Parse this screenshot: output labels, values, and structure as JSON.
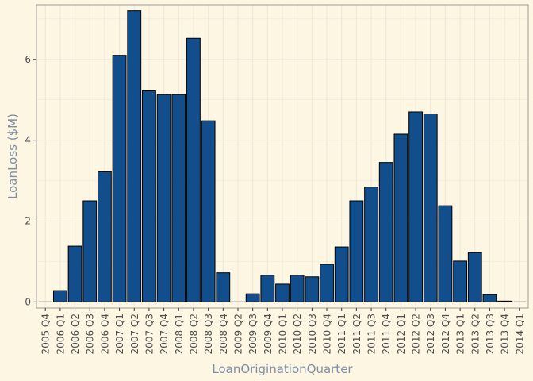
{
  "chart_data": {
    "type": "bar",
    "title": "",
    "xlabel": "LoanOriginationQuarter",
    "ylabel": "LoanLoss ($M)",
    "ylim": [
      -0.15,
      7.35
    ],
    "yticks": [
      0,
      2,
      4,
      6
    ],
    "grid": true,
    "legend": "none",
    "colors": {
      "background": "#fdf6e3",
      "panel": "#fdf6e3",
      "grid": "#efe8d6",
      "bar_fill": "#124e8c",
      "bar_outline": "#000000",
      "axis_text": "#4d4d4d",
      "axis_title": "#7f8ea3",
      "panel_border": "#9a9a9a"
    },
    "categories": [
      "2005 Q4",
      "2006 Q1",
      "2006 Q2",
      "2006 Q3",
      "2006 Q4",
      "2007 Q1",
      "2007 Q2",
      "2007 Q3",
      "2007 Q4",
      "2008 Q1",
      "2008 Q2",
      "2008 Q3",
      "2008 Q4",
      "2009 Q2",
      "2009 Q3",
      "2009 Q4",
      "2010 Q1",
      "2010 Q2",
      "2010 Q3",
      "2010 Q4",
      "2011 Q1",
      "2011 Q2",
      "2011 Q3",
      "2011 Q4",
      "2012 Q1",
      "2012 Q2",
      "2012 Q3",
      "2012 Q4",
      "2013 Q1",
      "2013 Q2",
      "2013 Q3",
      "2013 Q4",
      "2014 Q1"
    ],
    "values": [
      0.0,
      0.28,
      1.38,
      2.5,
      3.22,
      6.1,
      7.2,
      5.22,
      5.13,
      5.13,
      6.52,
      4.48,
      0.72,
      0.0,
      0.2,
      0.66,
      0.44,
      0.66,
      0.62,
      0.93,
      1.36,
      2.5,
      2.84,
      3.45,
      4.15,
      4.7,
      4.65,
      2.38,
      1.01,
      1.22,
      0.18,
      0.02,
      0.0
    ]
  }
}
